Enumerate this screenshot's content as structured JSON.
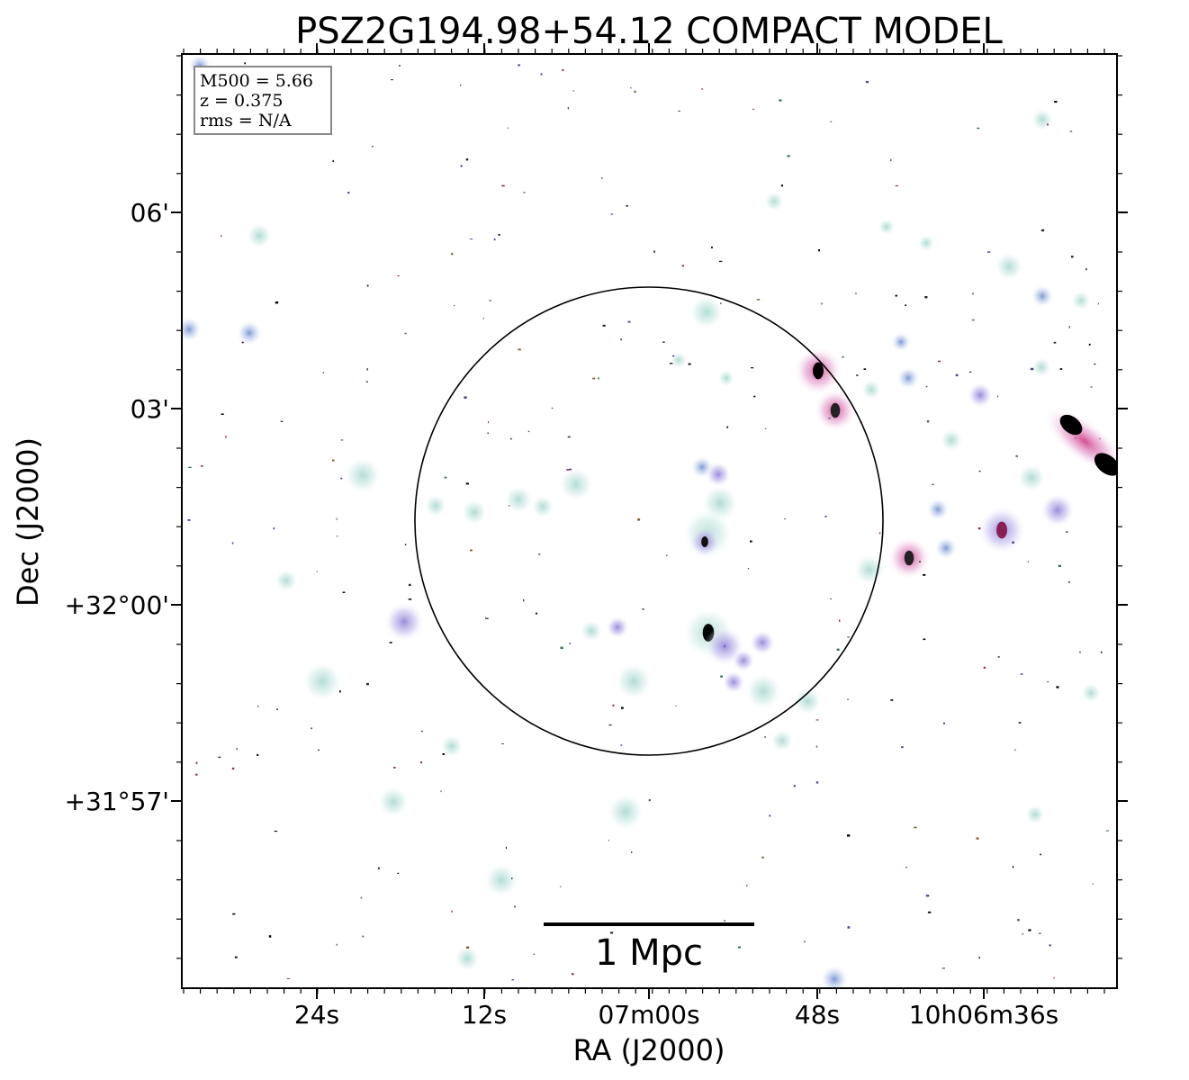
{
  "title": "PSZ2G194.98+54.12 COMPACT MODEL",
  "info_box": {
    "lines": [
      "M500 = 5.66",
      "z = 0.375",
      "rms = N/A"
    ]
  },
  "axes": {
    "x_label": "RA (J2000)",
    "y_label": "Dec (J2000)",
    "x_ticks": [
      "24s",
      "12s",
      "07m00s",
      "48s",
      "10h06m36s"
    ],
    "y_ticks": [
      "06'",
      "03'",
      "+32°00'",
      "+31°57'"
    ]
  },
  "scale_bar": {
    "label": "1 Mpc"
  },
  "colors": {
    "frame": "#000000",
    "halo_cyan": "#cfe9e4",
    "halo_violet": "#c9b8e8",
    "halo_pink": "#e8a0c8",
    "core_black": "#000000"
  }
}
